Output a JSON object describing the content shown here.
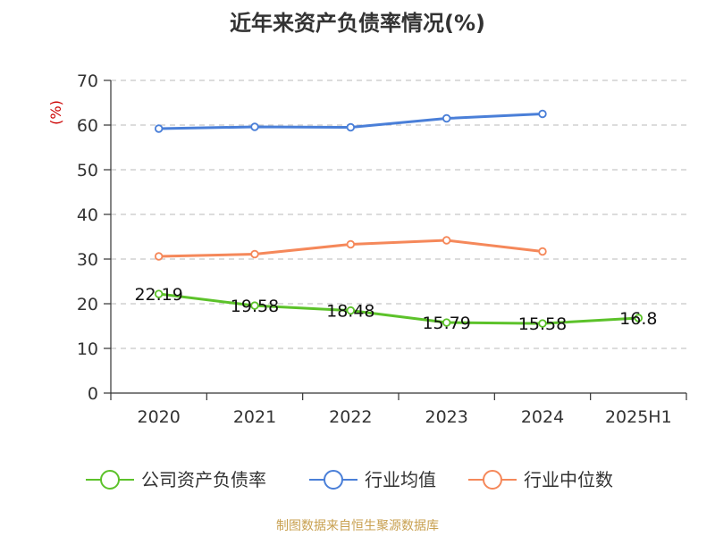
{
  "title": "近年来资产负债率情况(%)",
  "source": "制图数据来自恒生聚源数据库",
  "chart_data": {
    "type": "line",
    "title": "近年来资产负债率情况(%)",
    "ylabel": "(%)",
    "xlabel": "",
    "categories": [
      "2020",
      "2021",
      "2022",
      "2023",
      "2024",
      "2025H1"
    ],
    "ylim": [
      0,
      70
    ],
    "yticks": [
      0,
      10,
      20,
      30,
      40,
      50,
      60,
      70
    ],
    "grid": true,
    "legend_position": "bottom",
    "series": [
      {
        "name": "公司资产负债率",
        "color": "#5cc22a",
        "values": [
          22.19,
          19.58,
          18.48,
          15.79,
          15.58,
          16.8
        ],
        "labels": [
          "22.19",
          "19.58",
          "18.48",
          "15.79",
          "15.58",
          "16.8"
        ]
      },
      {
        "name": "行业均值",
        "color": "#4a7fd8",
        "values": [
          59.2,
          59.6,
          59.5,
          61.5,
          62.5,
          null
        ]
      },
      {
        "name": "行业中位数",
        "color": "#f5885a",
        "values": [
          30.6,
          31.1,
          33.3,
          34.2,
          31.7,
          null
        ]
      }
    ]
  }
}
